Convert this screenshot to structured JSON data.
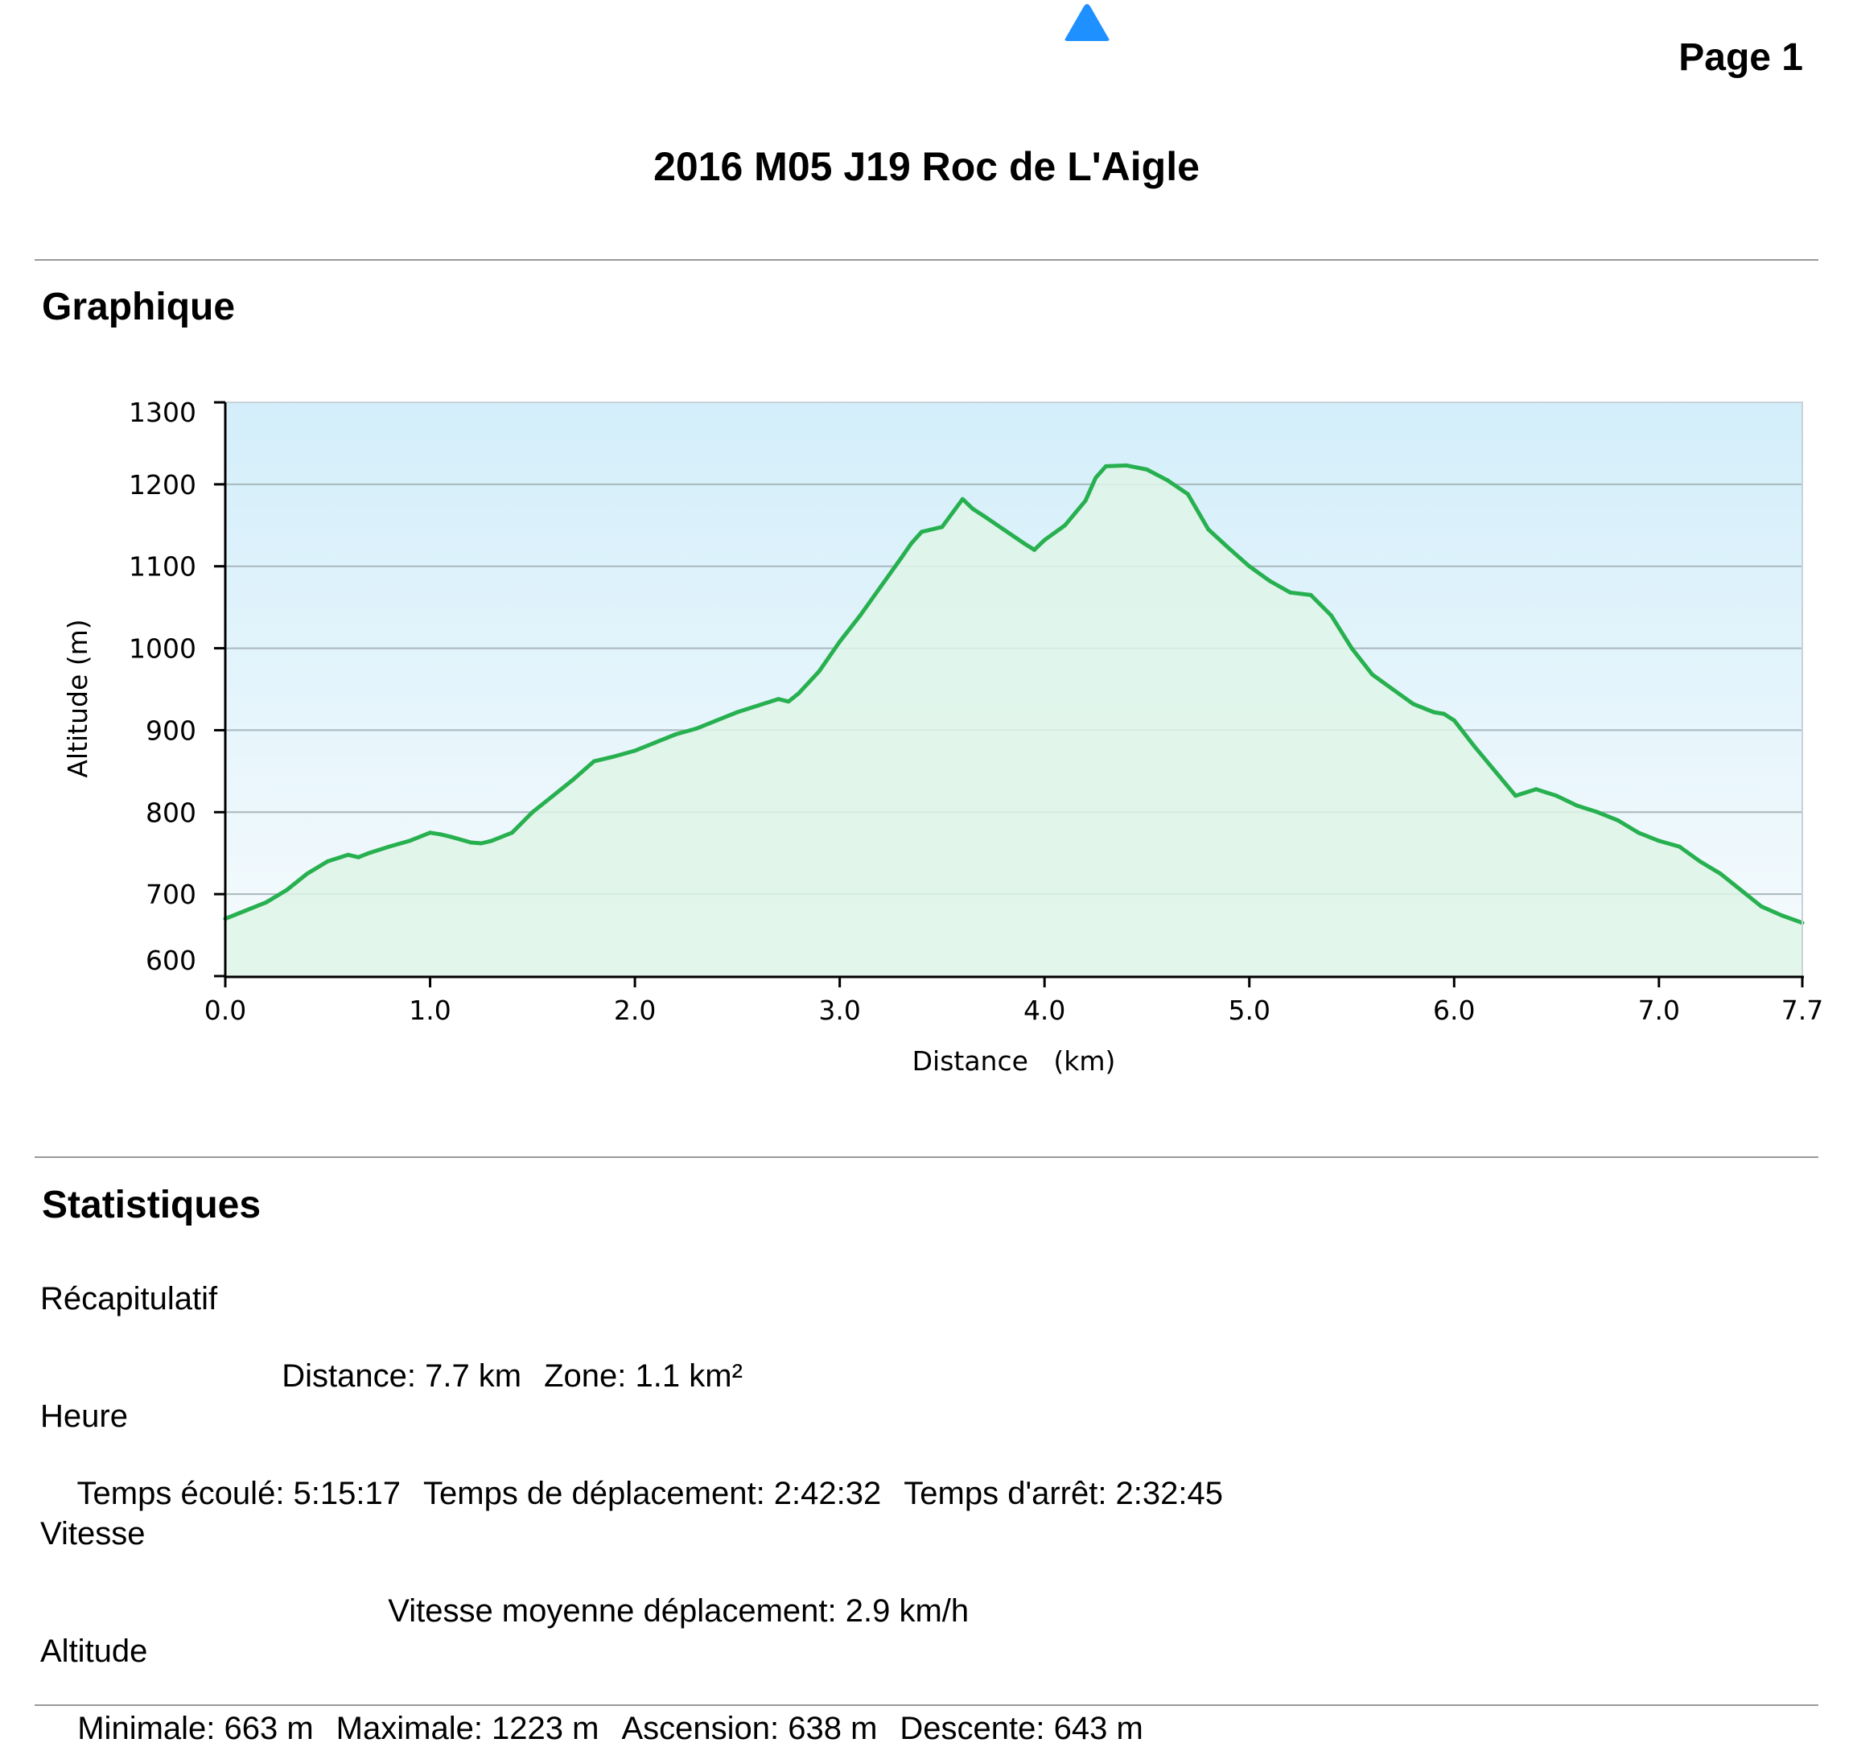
{
  "header": {
    "page_label": "Page 1",
    "title": "2016 M05 J19 Roc de L'Aigle",
    "logo_icon": "blue-triangle-logo",
    "logo_color": "#1e90ff"
  },
  "sections": {
    "graph_title": "Graphique",
    "stats_title": "Statistiques"
  },
  "chart_data": {
    "type": "area",
    "title": "",
    "xlabel": "Distance   (km)",
    "ylabel": "Altitude (m)",
    "xlim": [
      0,
      7.7
    ],
    "ylim": [
      600,
      1300
    ],
    "x_ticks": [
      "0.0",
      "1.0",
      "2.0",
      "3.0",
      "4.0",
      "5.0",
      "6.0",
      "7.0",
      "7.7"
    ],
    "x_tick_values": [
      0,
      1,
      2,
      3,
      4,
      5,
      6,
      7,
      7.7
    ],
    "y_ticks": [
      "600",
      "700",
      "800",
      "900",
      "1000",
      "1100",
      "1200",
      "1300"
    ],
    "y_tick_values": [
      600,
      700,
      800,
      900,
      1000,
      1100,
      1200,
      1300
    ],
    "grid": true,
    "line_color": "#27b04f",
    "fill_color": "#dff5e8",
    "background_top": "#d3eefa",
    "background_bottom": "#f6fbfd",
    "series": [
      {
        "x": [
          0,
          0.1,
          0.2,
          0.3,
          0.4,
          0.5,
          0.6,
          0.65,
          0.7,
          0.8,
          0.9,
          1.0,
          1.05,
          1.1,
          1.2,
          1.25,
          1.3,
          1.4,
          1.5,
          1.6,
          1.7,
          1.8,
          1.9,
          2.0,
          2.1,
          2.2,
          2.3,
          2.4,
          2.5,
          2.6,
          2.7,
          2.75,
          2.8,
          2.9,
          3.0,
          3.1,
          3.2,
          3.3,
          3.35,
          3.4,
          3.5,
          3.6,
          3.65,
          3.7,
          3.8,
          3.9,
          3.95,
          4.0,
          4.1,
          4.2,
          4.25,
          4.3,
          4.4,
          4.5,
          4.6,
          4.7,
          4.8,
          4.9,
          5.0,
          5.1,
          5.2,
          5.3,
          5.4,
          5.5,
          5.6,
          5.7,
          5.8,
          5.9,
          5.95,
          6.0,
          6.1,
          6.2,
          6.3,
          6.4,
          6.5,
          6.6,
          6.7,
          6.8,
          6.9,
          7.0,
          7.1,
          7.2,
          7.3,
          7.4,
          7.5,
          7.6,
          7.7
        ],
        "y": [
          670,
          680,
          690,
          705,
          725,
          740,
          748,
          745,
          750,
          758,
          765,
          775,
          773,
          770,
          763,
          762,
          765,
          775,
          800,
          820,
          840,
          862,
          868,
          875,
          885,
          895,
          902,
          912,
          922,
          930,
          938,
          935,
          945,
          972,
          1008,
          1040,
          1075,
          1110,
          1128,
          1142,
          1148,
          1182,
          1170,
          1162,
          1145,
          1128,
          1120,
          1132,
          1150,
          1180,
          1208,
          1222,
          1223,
          1218,
          1205,
          1188,
          1145,
          1122,
          1100,
          1082,
          1068,
          1065,
          1040,
          1000,
          968,
          950,
          932,
          922,
          920,
          912,
          880,
          850,
          820,
          828,
          820,
          808,
          800,
          790,
          775,
          765,
          758,
          740,
          725,
          705,
          685,
          674,
          665
        ]
      }
    ]
  },
  "stats": {
    "recap": {
      "heading": "Récapitulatif",
      "items": [
        "Distance: 7.7 km",
        "Zone: 1.1 km²"
      ]
    },
    "time": {
      "heading": "Heure",
      "items": [
        "Temps écoulé: 5:15:17",
        "Temps de déplacement: 2:42:32",
        "Temps d'arrêt: 2:32:45"
      ]
    },
    "speed": {
      "heading": "Vitesse",
      "items": [
        "Vitesse moyenne déplacement: 2.9 km/h"
      ]
    },
    "altitude": {
      "heading": "Altitude",
      "items": [
        "Minimale: 663 m",
        "Maximale: 1223 m",
        "Ascension: 638 m",
        "Descente: 643 m"
      ]
    }
  }
}
